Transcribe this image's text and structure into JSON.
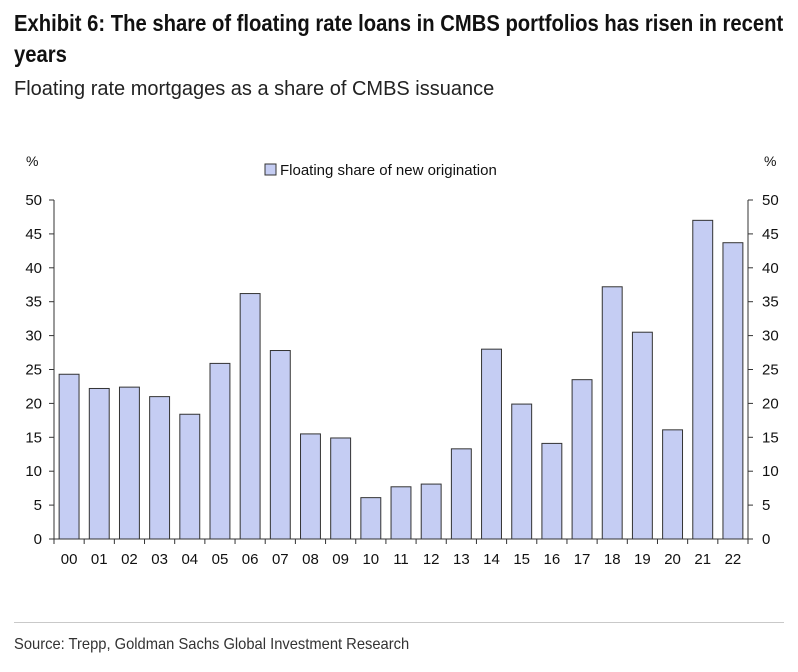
{
  "header": {
    "title": "Exhibit 6: The share of floating rate loans in CMBS portfolios has risen in recent years",
    "subtitle": "Floating rate mortgages as a share of CMBS issuance"
  },
  "footer": {
    "source": "Source: Trepp, Goldman Sachs Global Investment Research"
  },
  "colors": {
    "bar_fill": "#c5cdf3",
    "bar_stroke": "#333333",
    "axis": "#333333"
  },
  "chart_data": {
    "type": "bar",
    "categories": [
      "00",
      "01",
      "02",
      "03",
      "04",
      "05",
      "06",
      "07",
      "08",
      "09",
      "10",
      "11",
      "12",
      "13",
      "14",
      "15",
      "16",
      "17",
      "18",
      "19",
      "20",
      "21",
      "22"
    ],
    "series": [
      {
        "name": "Floating share of new origination",
        "values": [
          24.3,
          22.2,
          22.4,
          21.0,
          18.4,
          25.9,
          36.2,
          27.8,
          15.5,
          14.9,
          6.1,
          7.7,
          8.1,
          13.3,
          28.0,
          19.9,
          14.1,
          23.5,
          37.2,
          30.5,
          16.1,
          47.0,
          43.7
        ]
      }
    ],
    "ylim": [
      0,
      50
    ],
    "yticks": [
      "0",
      "5",
      "10",
      "15",
      "20",
      "25",
      "30",
      "35",
      "40",
      "45",
      "50"
    ],
    "ylabel_left": "%",
    "ylabel_right": "%",
    "legend_position": "top-center",
    "grid": false
  }
}
